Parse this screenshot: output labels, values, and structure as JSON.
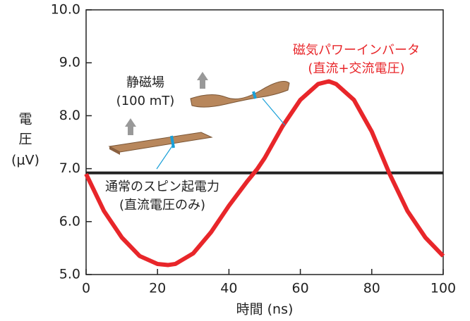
{
  "chart_data": {
    "type": "line",
    "xlabel": "時間 (ns)",
    "ylabel": [
      "電",
      "圧",
      "(μV)"
    ],
    "xlim": [
      0,
      100
    ],
    "xticks": [
      0,
      20,
      40,
      60,
      80,
      100
    ],
    "ylim": [
      5,
      10
    ],
    "yticks": [
      {
        "value": 5,
        "label": "5.0"
      },
      {
        "value": 6,
        "label": "6.0"
      },
      {
        "value": 7,
        "label": "7.0"
      },
      {
        "value": 8,
        "label": "8.0"
      },
      {
        "value": 9,
        "label": "9.0"
      },
      {
        "value": 10,
        "label": "10.0"
      }
    ],
    "series": [
      {
        "color": "#e8262a",
        "x": [
          0,
          5,
          10,
          15,
          20,
          23,
          25,
          30,
          35,
          40,
          45,
          48,
          50,
          55,
          60,
          65,
          68,
          70,
          75,
          80,
          85,
          90,
          95,
          100
        ],
        "values": [
          6.9,
          6.2,
          5.7,
          5.35,
          5.2,
          5.18,
          5.2,
          5.4,
          5.8,
          6.3,
          6.75,
          7.0,
          7.2,
          7.8,
          8.3,
          8.6,
          8.65,
          8.6,
          8.3,
          7.7,
          6.9,
          6.2,
          5.7,
          5.35
        ]
      },
      {
        "color": "#222222",
        "x": [
          0,
          100
        ],
        "values": [
          6.92,
          6.92
        ]
      }
    ],
    "annotations": [
      {
        "lines": [
          "磁気パワーインバータ",
          "(直流+交流電圧)"
        ],
        "color": "#e8262a"
      },
      {
        "lines": [
          "静磁場",
          "(100 mT)"
        ],
        "color": "#222222"
      },
      {
        "lines": [
          "通常のスピン起電力",
          "(直流電圧のみ)"
        ],
        "color": "#222222"
      }
    ]
  }
}
